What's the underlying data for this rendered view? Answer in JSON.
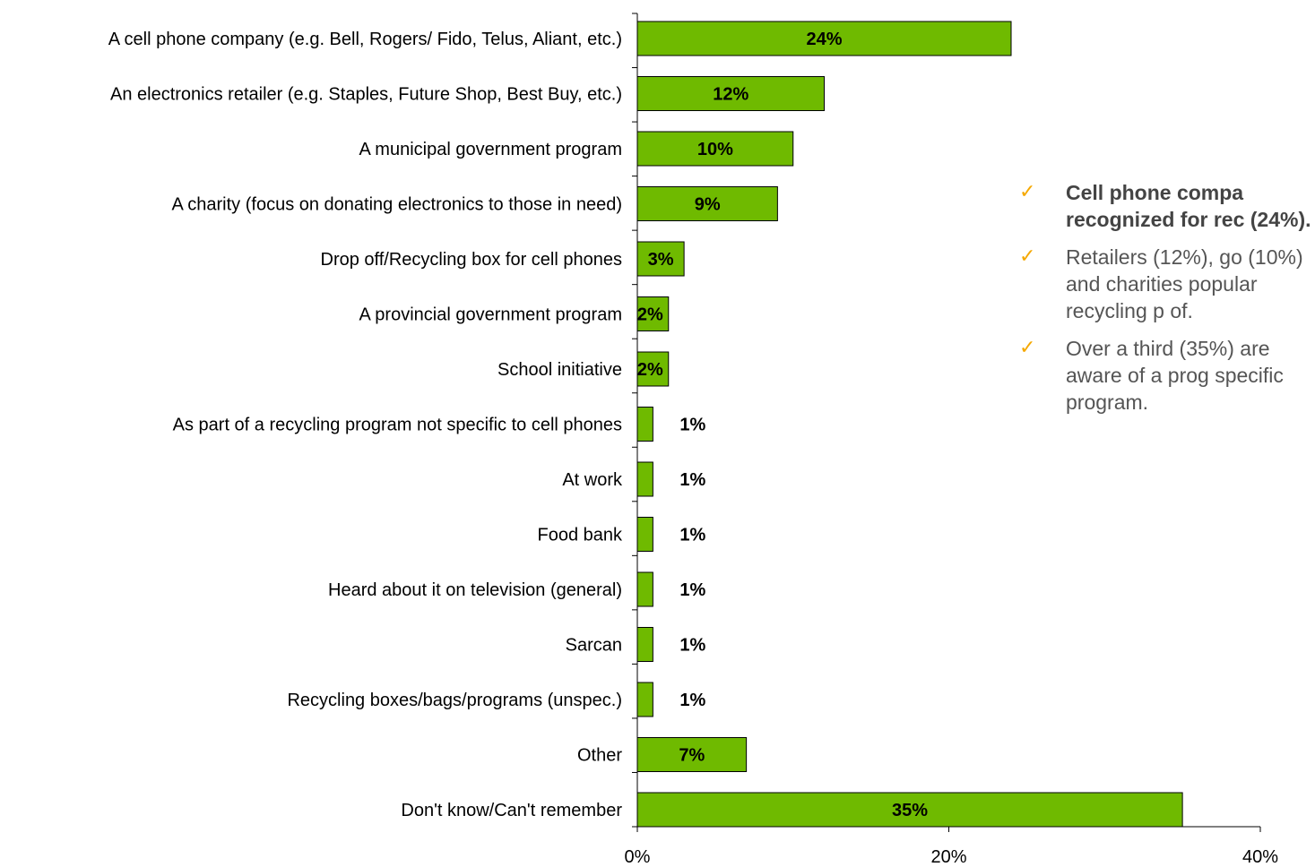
{
  "chart_data": {
    "type": "bar",
    "orientation": "horizontal",
    "categories": [
      "A cell phone company (e.g. Bell, Rogers/ Fido, Telus, Aliant, etc.)",
      "An electronics retailer (e.g. Staples, Future Shop, Best Buy, etc.)",
      "A municipal government program",
      "A charity (focus on donating electronics to those in need)",
      "Drop off/Recycling box for cell phones",
      "A provincial government program",
      "School initiative",
      "As part of a recycling program not specific to cell phones",
      "At work",
      "Food bank",
      "Heard about it on television (general)",
      "Sarcan",
      "Recycling boxes/bags/programs (unspec.)",
      "Other",
      "Don't know/Can't remember"
    ],
    "values": [
      24,
      12,
      10,
      9,
      3,
      2,
      2,
      1,
      1,
      1,
      1,
      1,
      1,
      7,
      35
    ],
    "value_labels": [
      "24%",
      "12%",
      "10%",
      "9%",
      "3%",
      "2%",
      "2%",
      "1%",
      "1%",
      "1%",
      "1%",
      "1%",
      "1%",
      "7%",
      "35%"
    ],
    "xlim": [
      0,
      40
    ],
    "xticks": [
      "0%",
      "20%",
      "40%"
    ],
    "title": "",
    "xlabel": "",
    "ylabel": "",
    "grid": false,
    "legend": "none",
    "bar_color": "#6fba00",
    "bar_edge_color": "#000000"
  },
  "notes": [
    {
      "text": "Cell phone compa recognized for rec (24%).",
      "bold": true
    },
    {
      "text": "Retailers (12%), go (10%) and charities popular recycling p of.",
      "bold": false
    },
    {
      "text": "Over a third (35%) are aware of a prog specific program.",
      "bold": false
    }
  ],
  "colors": {
    "check": "#f5a800",
    "note_text": "#555555"
  },
  "icons": {
    "check": "checkmark-icon"
  },
  "glyphs": {
    "check": "✓"
  }
}
